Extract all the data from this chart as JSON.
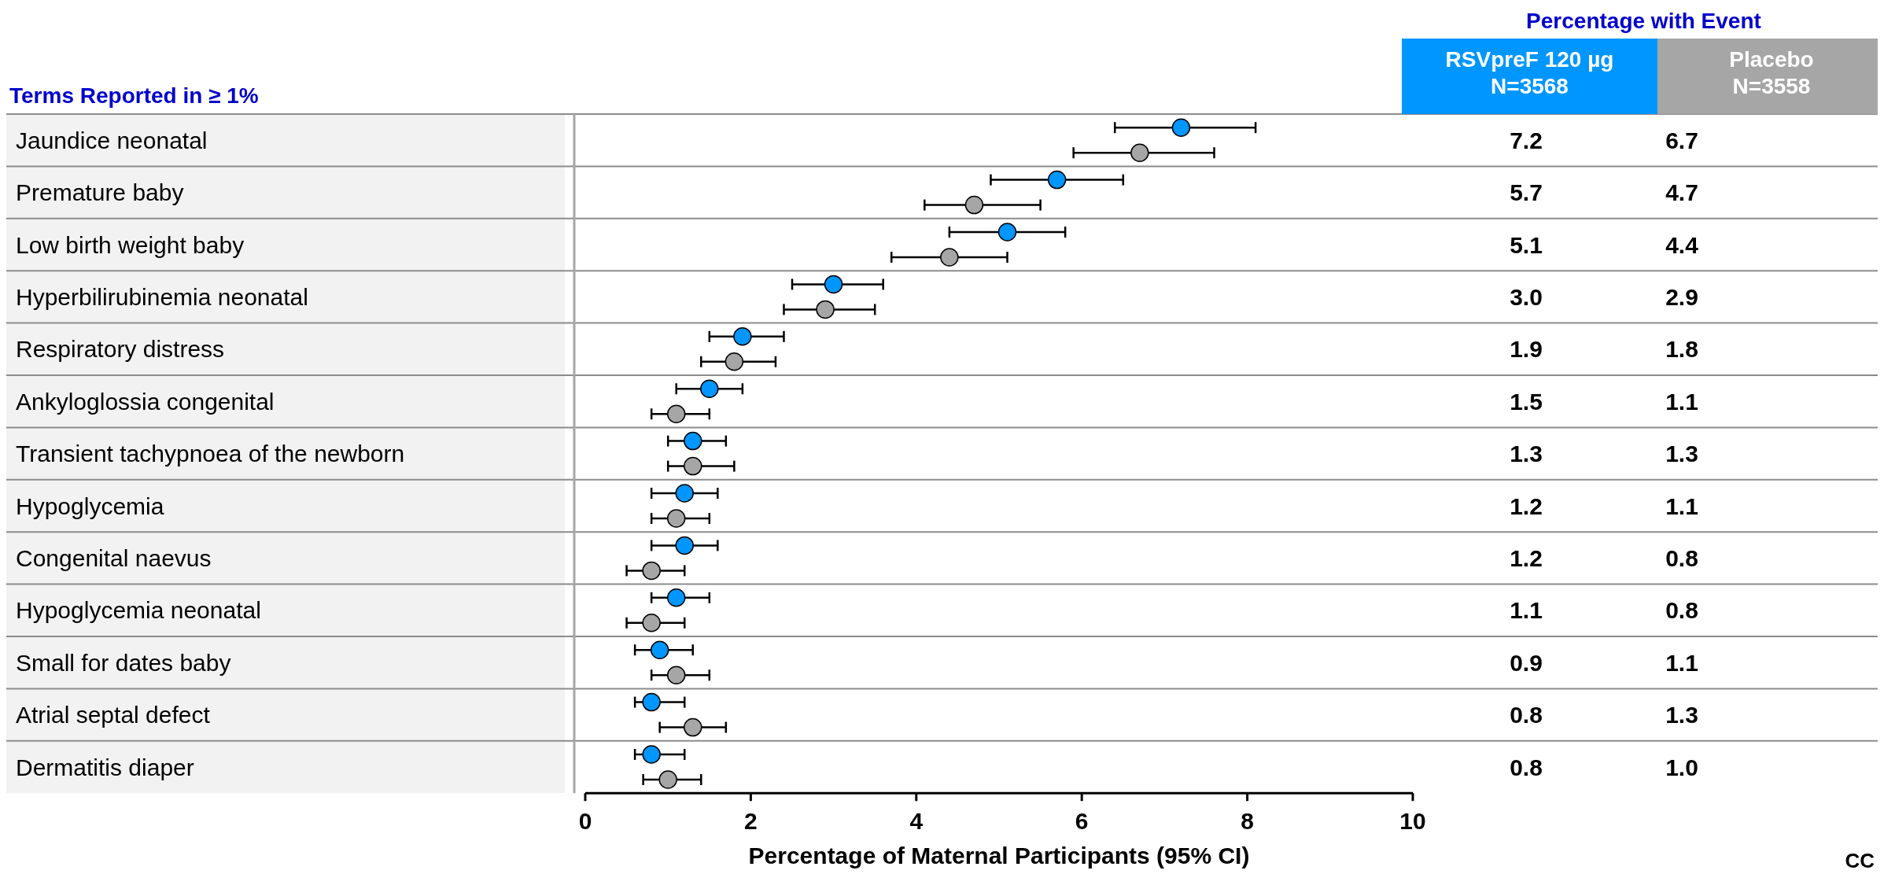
{
  "chart_data": {
    "type": "scatter",
    "orientation": "horizontal",
    "legend_title": "Percentage with Event",
    "ylabel": "Terms Reported in ≥ 1%",
    "xlabel": "Percentage of Maternal Participants (95% CI)",
    "categories": [
      "Jaundice neonatal",
      "Premature baby",
      "Low birth weight baby",
      "Hyperbilirubinemia neonatal",
      "Respiratory distress",
      "Ankyloglossia congenital",
      "Transient tachypnoea of the newborn",
      "Hypoglycemia",
      "Congenital naevus",
      "Hypoglycemia neonatal",
      "Small for dates baby",
      "Atrial septal defect",
      "Dermatitis diaper"
    ],
    "series": [
      {
        "name": "RSVpreF 120 µg N=3568",
        "color": "#0096ff",
        "values": [
          7.2,
          5.7,
          5.1,
          3.0,
          1.9,
          1.5,
          1.3,
          1.2,
          1.2,
          1.1,
          0.9,
          0.8,
          0.8
        ],
        "value_labels": [
          "7.2",
          "5.7",
          "5.1",
          "3.0",
          "1.9",
          "1.5",
          "1.3",
          "1.2",
          "1.2",
          "1.1",
          "0.9",
          "0.8",
          "0.8"
        ],
        "errors": [
          [
            6.4,
            8.1
          ],
          [
            4.9,
            6.5
          ],
          [
            4.4,
            5.8
          ],
          [
            2.5,
            3.6
          ],
          [
            1.5,
            2.4
          ],
          [
            1.1,
            1.9
          ],
          [
            1.0,
            1.7
          ],
          [
            0.8,
            1.6
          ],
          [
            0.8,
            1.6
          ],
          [
            0.8,
            1.5
          ],
          [
            0.6,
            1.3
          ],
          [
            0.6,
            1.2
          ],
          [
            0.6,
            1.2
          ]
        ]
      },
      {
        "name": "Placebo N=3558",
        "color": "#a6a6a6",
        "values": [
          6.7,
          4.7,
          4.4,
          2.9,
          1.8,
          1.1,
          1.3,
          1.1,
          0.8,
          0.8,
          1.1,
          1.3,
          1.0
        ],
        "value_labels": [
          "6.7",
          "4.7",
          "4.4",
          "2.9",
          "1.8",
          "1.1",
          "1.3",
          "1.1",
          "0.8",
          "0.8",
          "1.1",
          "1.3",
          "1.0"
        ],
        "errors": [
          [
            5.9,
            7.6
          ],
          [
            4.1,
            5.5
          ],
          [
            3.7,
            5.1
          ],
          [
            2.4,
            3.5
          ],
          [
            1.4,
            2.3
          ],
          [
            0.8,
            1.5
          ],
          [
            1.0,
            1.8
          ],
          [
            0.8,
            1.5
          ],
          [
            0.5,
            1.2
          ],
          [
            0.5,
            1.2
          ],
          [
            0.8,
            1.5
          ],
          [
            0.9,
            1.7
          ],
          [
            0.7,
            1.4
          ]
        ]
      }
    ],
    "xlim": [
      0,
      10
    ],
    "xticks": [
      0,
      2,
      4,
      6,
      8,
      10
    ],
    "marker": "circle",
    "legend": "top right",
    "annotations": [
      "CC"
    ]
  }
}
